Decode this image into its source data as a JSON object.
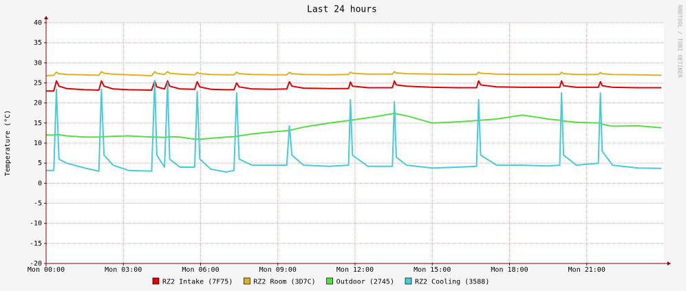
{
  "chart_data": {
    "type": "line",
    "title": "Last 24 hours",
    "y_label": "Temperature (°C)",
    "side_text": "RRDTOOL / TOBI OETIKER",
    "x": [
      0,
      0.3,
      0.4,
      0.5,
      0.8,
      1.5,
      2.05,
      2.15,
      2.25,
      2.6,
      3.2,
      4.1,
      4.22,
      4.3,
      4.6,
      4.72,
      4.8,
      5.2,
      5.77,
      5.87,
      5.97,
      6.4,
      7.0,
      7.3,
      7.4,
      7.5,
      8.0,
      8.8,
      9.35,
      9.45,
      9.55,
      10.0,
      11.0,
      11.75,
      11.82,
      11.9,
      12.5,
      13.45,
      13.53,
      13.6,
      14.0,
      15.0,
      16.0,
      16.72,
      16.8,
      16.88,
      17.5,
      18.5,
      19.5,
      19.95,
      20.02,
      20.1,
      20.6,
      21.45,
      21.53,
      21.6,
      22.0,
      23.0,
      23.9
    ],
    "series": [
      {
        "name": "RZ2 Intake (7F75)",
        "color": "#e00000",
        "values": [
          23,
          23,
          25.5,
          24.2,
          23.6,
          23.3,
          23.2,
          25.5,
          24.2,
          23.5,
          23.3,
          23.2,
          25.5,
          24,
          23.5,
          25.5,
          24.2,
          23.5,
          23.4,
          25.3,
          24,
          23.4,
          23.3,
          23.3,
          25,
          24,
          23.5,
          23.4,
          23.5,
          25.3,
          24.2,
          23.7,
          23.6,
          23.6,
          25.2,
          24.2,
          23.8,
          23.8,
          25.5,
          24.5,
          24.2,
          23.9,
          23.8,
          23.8,
          25.5,
          24.5,
          24,
          23.9,
          23.9,
          23.9,
          25.5,
          24.3,
          23.9,
          23.9,
          25.3,
          24.3,
          23.9,
          23.8,
          23.8
        ]
      },
      {
        "name": "RZ2 Room (3D7C)",
        "color": "#e0b020",
        "values": [
          26.8,
          26.9,
          27.7,
          27.3,
          27.1,
          27,
          26.9,
          27.8,
          27.4,
          27.2,
          27,
          26.8,
          27.8,
          27.4,
          27.1,
          27.8,
          27.4,
          27.2,
          27,
          27.6,
          27.3,
          27.1,
          27,
          27,
          27.7,
          27.3,
          27.1,
          27,
          27,
          27.6,
          27.3,
          27.1,
          27,
          27.1,
          27.7,
          27.4,
          27.2,
          27.2,
          27.8,
          27.5,
          27.3,
          27.2,
          27.1,
          27.1,
          27.7,
          27.4,
          27.2,
          27.1,
          27.1,
          27.1,
          27.7,
          27.3,
          27.1,
          27.1,
          27.6,
          27.3,
          27.1,
          27,
          26.9
        ]
      },
      {
        "name": "Outdoor (2745)",
        "color": "#55dd44",
        "values": [
          12,
          12,
          12.1,
          12.1,
          11.8,
          11.5,
          11.5,
          11.6,
          11.6,
          11.7,
          11.8,
          11.5,
          11.5,
          11.5,
          11.4,
          11.5,
          11.6,
          11.5,
          11,
          11,
          11,
          11.2,
          11.5,
          11.6,
          11.7,
          11.8,
          12.3,
          12.8,
          13.1,
          13.2,
          13.3,
          14,
          15,
          15.6,
          15.7,
          15.8,
          16.3,
          17.3,
          17.5,
          17.3,
          16.8,
          15,
          15.3,
          15.6,
          15.7,
          15.7,
          16,
          17,
          16,
          15.7,
          15.6,
          15.5,
          15.2,
          15,
          15,
          14.7,
          14.2,
          14.3,
          13.8
        ]
      },
      {
        "name": "RZ2 Cooling (3588)",
        "color": "#44ccdd",
        "values": [
          3.2,
          3.2,
          23.4,
          6,
          5,
          3.8,
          3,
          23.4,
          7,
          4.5,
          3.2,
          3,
          25.6,
          7,
          4,
          25,
          6,
          4,
          4,
          22.8,
          6,
          3.5,
          2.8,
          3.2,
          22.5,
          6,
          4.5,
          4.5,
          4.5,
          14.3,
          7,
          4.5,
          4.2,
          4.5,
          20.8,
          7,
          4.2,
          4.2,
          20.3,
          6.5,
          4.5,
          3.8,
          4,
          4.2,
          20.8,
          7,
          4.5,
          4.5,
          4.3,
          4.5,
          22.5,
          7,
          4.5,
          5,
          22.5,
          8,
          4.5,
          3.8,
          3.7
        ]
      }
    ],
    "xlim": [
      0,
      24
    ],
    "xticks": [
      {
        "value": 0,
        "label": "Mon 00:00"
      },
      {
        "value": 3,
        "label": "Mon 03:00"
      },
      {
        "value": 6,
        "label": "Mon 06:00"
      },
      {
        "value": 9,
        "label": "Mon 09:00"
      },
      {
        "value": 12,
        "label": "Mon 12:00"
      },
      {
        "value": 15,
        "label": "Mon 15:00"
      },
      {
        "value": 18,
        "label": "Mon 18:00"
      },
      {
        "value": 21,
        "label": "Mon 21:00"
      }
    ],
    "ylim": [
      -20,
      40
    ],
    "yticks": [
      -20,
      -15,
      -10,
      -5,
      0,
      5,
      10,
      15,
      20,
      25,
      30,
      35,
      40
    ],
    "grid": true,
    "grid_color": "#f0a0a0",
    "legend": "bottom"
  }
}
